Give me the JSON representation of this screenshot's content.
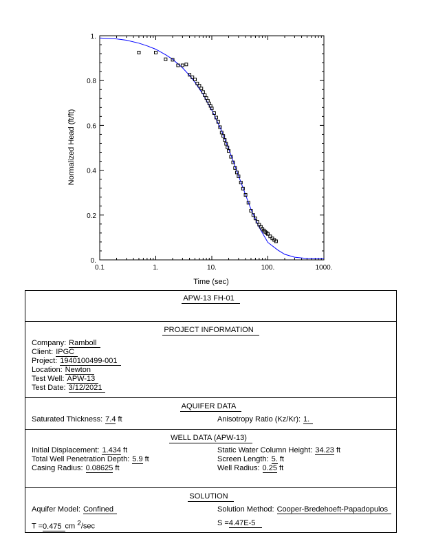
{
  "chart_data": {
    "type": "scatter",
    "xlabel": "Time  (sec)",
    "ylabel": "Normalized Head (ft/ft)",
    "x_scale": "log",
    "xlim": [
      0.1,
      1000
    ],
    "ylim": [
      0,
      1
    ],
    "x_ticks": [
      "0.1",
      "1.",
      "10.",
      "100.",
      "1000."
    ],
    "y_ticks": [
      "0.",
      "0.2",
      "0.4",
      "0.6",
      "0.8",
      "1."
    ],
    "grid": false,
    "colors": {
      "observed": "#000000",
      "fitted": "#0000ff"
    },
    "observed": {
      "x": [
        0.5,
        1,
        1.5,
        2,
        2.5,
        3,
        3.5,
        4,
        4.5,
        5,
        5.5,
        6,
        6.5,
        7,
        7.5,
        8,
        8.5,
        9,
        9.5,
        10,
        11,
        12,
        13,
        14,
        15,
        16,
        17,
        18,
        19,
        20,
        22,
        24,
        26,
        28,
        30,
        33,
        36,
        40,
        45,
        50,
        55,
        60,
        65,
        70,
        75,
        80,
        85,
        90,
        95,
        100,
        110,
        120,
        130,
        140
      ],
      "y": [
        0.925,
        0.925,
        0.895,
        0.893,
        0.868,
        0.868,
        0.872,
        0.826,
        0.815,
        0.805,
        0.787,
        0.777,
        0.765,
        0.749,
        0.735,
        0.722,
        0.71,
        0.698,
        0.687,
        0.676,
        0.655,
        0.635,
        0.616,
        0.592,
        0.568,
        0.553,
        0.535,
        0.518,
        0.502,
        0.486,
        0.46,
        0.435,
        0.41,
        0.39,
        0.373,
        0.345,
        0.318,
        0.29,
        0.255,
        0.219,
        0.2,
        0.185,
        0.17,
        0.157,
        0.148,
        0.138,
        0.131,
        0.125,
        0.12,
        0.116,
        0.105,
        0.096,
        0.089,
        0.083
      ]
    },
    "fitted": {
      "x": [
        0.1,
        0.2,
        0.3,
        0.5,
        0.7,
        1,
        1.5,
        2,
        3,
        4,
        5,
        7,
        10,
        15,
        20,
        30,
        40,
        50,
        70,
        100,
        150,
        200,
        300,
        500,
        700,
        1000
      ],
      "y": [
        0.99,
        0.986,
        0.98,
        0.967,
        0.955,
        0.94,
        0.915,
        0.895,
        0.857,
        0.823,
        0.792,
        0.738,
        0.668,
        0.575,
        0.495,
        0.375,
        0.29,
        0.225,
        0.145,
        0.078,
        0.044,
        0.025,
        0.012,
        0.006,
        0.005,
        0.005
      ]
    }
  },
  "report": {
    "title": "APW-13 FH-01",
    "project": {
      "heading": "PROJECT   INFORMATION",
      "company_label": "Company:",
      "company": "Ramboll",
      "client_label": "Client:",
      "client": "IPGC",
      "project_label": "Project:",
      "project": "1940100499-001",
      "location_label": "Location:",
      "location": "Newton",
      "test_well_label": "Test Well:",
      "test_well": "APW-13",
      "test_date_label": "Test Date:",
      "test_date": "3/12/2021"
    },
    "aquifer": {
      "heading": "AQUIFER   DATA",
      "sat_thickness_label": "Saturated  Thickness:",
      "sat_thickness": "7.4",
      "sat_thickness_unit": "ft",
      "anisotropy_label": "Anisotropy Ratio  (Kz/Kr):",
      "anisotropy": "1."
    },
    "well": {
      "heading": "WELL  DATA (APW-13)",
      "init_disp_label": "Initial  Displacement:",
      "init_disp": "1.434",
      "init_disp_unit": "ft",
      "penetration_label": "Total  Well Penetration  Depth:",
      "penetration": "5.9",
      "penetration_unit": "ft",
      "casing_label": "Casing  Radius:",
      "casing": "0.08625",
      "casing_unit": "ft",
      "static_label": "Static Water  Column  Height:",
      "static": "34.23",
      "static_unit": "ft",
      "screen_label": "Screen Length:",
      "screen": "5.",
      "screen_unit": "ft",
      "well_radius_label": "Well Radius:",
      "well_radius": "0.25",
      "well_radius_unit": "ft"
    },
    "solution": {
      "heading": "SOLUTION",
      "model_label": "Aquifer Model:",
      "model": "Confined",
      "method_label": "Solution  Method:",
      "method": "Cooper-Bredehoeft-Papadopulos",
      "t_label": "T =",
      "t_value": "0.475",
      "t_unit_pre": "cm ",
      "t_unit_sup": "2",
      "t_unit_post": "/sec",
      "s_label": "S =",
      "s_value": "4.47E-5"
    }
  }
}
